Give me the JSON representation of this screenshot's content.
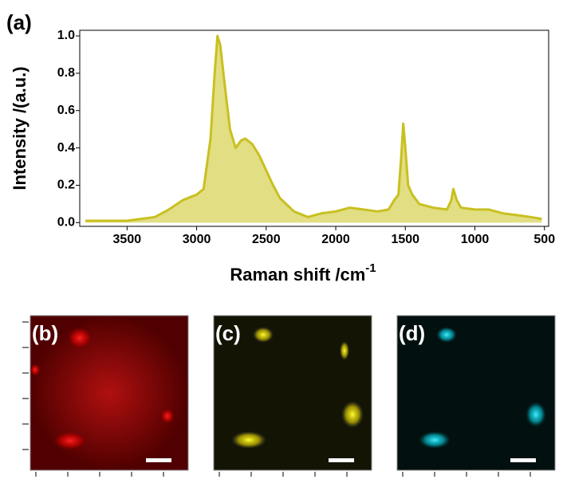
{
  "chart_data": {
    "type": "area",
    "panel_label": "(a)",
    "ylabel": "Intensity /(a.u.)",
    "xlabel": "Raman shift /cm",
    "xlabel_superscript": "-1",
    "color": "#c8c020",
    "fill": "#e2de84",
    "x": [
      3800,
      3500,
      3300,
      3200,
      3100,
      3000,
      2950,
      2900,
      2870,
      2850,
      2830,
      2800,
      2760,
      2720,
      2680,
      2650,
      2600,
      2550,
      2500,
      2450,
      2400,
      2300,
      2200,
      2100,
      2000,
      1900,
      1800,
      1700,
      1620,
      1580,
      1550,
      1530,
      1515,
      1500,
      1480,
      1450,
      1400,
      1300,
      1200,
      1170,
      1155,
      1130,
      1100,
      1000,
      900,
      800,
      700,
      600,
      520
    ],
    "values": [
      0.01,
      0.01,
      0.03,
      0.07,
      0.12,
      0.15,
      0.18,
      0.45,
      0.8,
      1.0,
      0.95,
      0.75,
      0.5,
      0.4,
      0.44,
      0.45,
      0.42,
      0.36,
      0.28,
      0.2,
      0.13,
      0.06,
      0.03,
      0.05,
      0.06,
      0.08,
      0.07,
      0.06,
      0.07,
      0.12,
      0.15,
      0.35,
      0.53,
      0.4,
      0.2,
      0.15,
      0.1,
      0.08,
      0.07,
      0.12,
      0.18,
      0.12,
      0.08,
      0.07,
      0.07,
      0.05,
      0.04,
      0.03,
      0.02
    ],
    "xlim": [
      3840,
      470
    ],
    "xticks": [
      3500,
      3000,
      2500,
      2000,
      1500,
      1000,
      500
    ],
    "ylim": [
      -0.02,
      1.03
    ],
    "yticks": [
      {
        "value": 0,
        "label": "0.0"
      },
      0.2,
      0.4,
      0.6,
      0.8,
      {
        "value": 1,
        "label": "1.0"
      }
    ]
  },
  "panels": [
    {
      "label": "(b)"
    },
    {
      "label": "(c)"
    },
    {
      "label": "(d)"
    }
  ]
}
